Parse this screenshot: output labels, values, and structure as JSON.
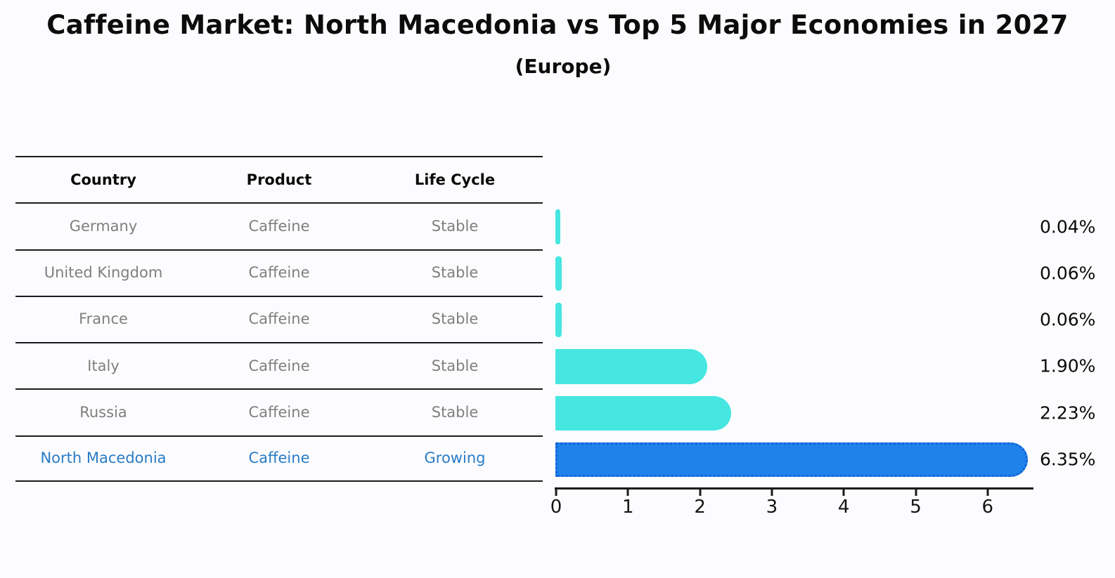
{
  "title": "Caffeine Market: North Macedonia vs Top 5 Major Economies in 2027",
  "subtitle": "(Europe)",
  "table": {
    "headers": [
      "Country",
      "Product",
      "Life Cycle"
    ],
    "rows": [
      {
        "country": "Germany",
        "product": "Caffeine",
        "life_cycle": "Stable",
        "highlight": false
      },
      {
        "country": "United Kingdom",
        "product": "Caffeine",
        "life_cycle": "Stable",
        "highlight": false
      },
      {
        "country": "France",
        "product": "Caffeine",
        "life_cycle": "Stable",
        "highlight": false
      },
      {
        "country": "Italy",
        "product": "Caffeine",
        "life_cycle": "Stable",
        "highlight": false
      },
      {
        "country": "Russia",
        "product": "Caffeine",
        "life_cycle": "Stable",
        "highlight": false
      },
      {
        "country": "North Macedonia",
        "product": "Caffeine",
        "life_cycle": "Growing",
        "highlight": true
      }
    ]
  },
  "chart_data": {
    "type": "bar",
    "orientation": "horizontal",
    "title": "Caffeine Market: North Macedonia vs Top 5 Major Economies in 2027 (Europe)",
    "categories": [
      "Germany",
      "United Kingdom",
      "France",
      "Italy",
      "Russia",
      "North Macedonia"
    ],
    "values": [
      0.04,
      0.06,
      0.06,
      1.9,
      2.23,
      6.35
    ],
    "value_labels": [
      "0.04%",
      "0.06%",
      "0.06%",
      "1.90%",
      "2.23%",
      "6.35%"
    ],
    "x_ticks": [
      "0",
      "1",
      "2",
      "3",
      "4",
      "5",
      "6"
    ],
    "xlim": [
      0,
      6.6
    ],
    "grid": false,
    "legend": "none",
    "value_label_position": "right",
    "bar_color": "#45e7e0",
    "highlight_index": 5,
    "highlight_color": "#1e82ea",
    "highlight_edge_color": "#1263d8",
    "highlight_edge_style": "dotted",
    "highlight_text_color": "#2a7bc4",
    "axis_color": "#1a1a1a"
  }
}
